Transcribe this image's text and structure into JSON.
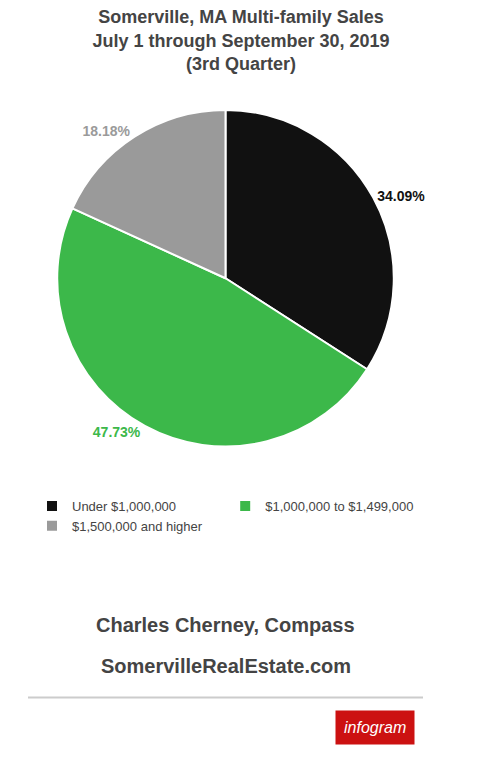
{
  "chart_data": {
    "type": "pie",
    "title": "Somerville, MA Multi-family Sales",
    "subtitle": [
      "July 1 through September 30, 2019",
      "(3rd Quarter)"
    ],
    "categories": [
      "Under $1,000,000",
      "$1,000,000 to $1,499,000",
      "$1,500,000 and higher"
    ],
    "values": [
      34.09,
      47.73,
      18.18
    ],
    "value_labels": [
      "34.09%",
      "47.73%",
      "18.18%"
    ],
    "colors": [
      "#111111",
      "#3cb84a",
      "#9a9a9a"
    ],
    "data_labels": true,
    "legend": "bottom",
    "annotations": [
      {
        "text": "Charles Cherney, Compass"
      },
      {
        "text": "SomervilleRealEstate.com"
      },
      {
        "text": "infogram",
        "color": "#cc1111"
      }
    ]
  }
}
